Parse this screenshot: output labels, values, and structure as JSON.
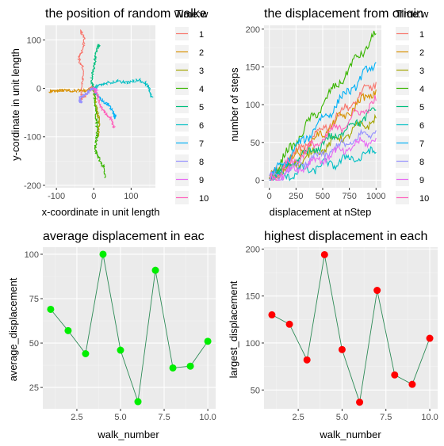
{
  "colors": {
    "panel_bg": "#EBEBEB",
    "grid_major": "#FFFFFF",
    "grid_minor": "#F4F4F4",
    "avg_line": "#2E8B57",
    "avg_point": "#00EE00",
    "max_line": "#2E8B57",
    "max_point": "#FF0000",
    "walks": [
      "#F8766D",
      "#D89000",
      "#A3A500",
      "#39B600",
      "#00BF7D",
      "#00BFC4",
      "#00B0F6",
      "#9590FF",
      "#E76BF3",
      "#FF62BC"
    ]
  },
  "chart_data": [
    {
      "type": "line",
      "title": "the position of random walke",
      "xlabel": "x-coordinate in unit length",
      "ylabel": "y-cordinate in unit length",
      "xlim": [
        -130,
        165
      ],
      "ylim": [
        -205,
        130
      ],
      "xticks": [
        -100,
        0,
        100
      ],
      "yticks": [
        -200,
        -100,
        0,
        100
      ],
      "legend": {
        "title": "Time:w",
        "entries": [
          "1",
          "2",
          "3",
          "4",
          "5",
          "6",
          "7",
          "8",
          "9",
          "10"
        ],
        "position": "right"
      },
      "series": [
        {
          "name": "1",
          "anchors": [
            [
              0,
              0
            ],
            [
              -5,
              5
            ],
            [
              -20,
              -12
            ],
            [
              -35,
              -25
            ],
            [
              -30,
              10
            ],
            [
              -28,
              40
            ],
            [
              -40,
              60
            ],
            [
              -30,
              80
            ],
            [
              -25,
              100
            ],
            [
              -35,
              120
            ]
          ]
        },
        {
          "name": "2",
          "anchors": [
            [
              0,
              0
            ],
            [
              -8,
              -2
            ],
            [
              -20,
              -5
            ],
            [
              -35,
              -4
            ],
            [
              -60,
              -5
            ],
            [
              -80,
              -3
            ],
            [
              -100,
              -6
            ],
            [
              -110,
              -5
            ],
            [
              -120,
              -7
            ]
          ]
        },
        {
          "name": "3",
          "anchors": [
            [
              0,
              0
            ],
            [
              2,
              -10
            ],
            [
              5,
              -30
            ],
            [
              8,
              -45
            ],
            [
              12,
              -60
            ],
            [
              14,
              -75
            ],
            [
              12,
              -90
            ],
            [
              10,
              -100
            ]
          ]
        },
        {
          "name": "4",
          "anchors": [
            [
              0,
              0
            ],
            [
              3,
              -20
            ],
            [
              6,
              -45
            ],
            [
              8,
              -70
            ],
            [
              10,
              -95
            ],
            [
              5,
              -115
            ],
            [
              4,
              -130
            ],
            [
              15,
              -145
            ],
            [
              25,
              -160
            ],
            [
              30,
              -185
            ]
          ]
        },
        {
          "name": "5",
          "anchors": [
            [
              0,
              0
            ],
            [
              -5,
              15
            ],
            [
              -2,
              35
            ],
            [
              2,
              50
            ],
            [
              5,
              65
            ],
            [
              8,
              80
            ],
            [
              12,
              90
            ],
            [
              15,
              85
            ]
          ]
        },
        {
          "name": "6",
          "anchors": [
            [
              0,
              0
            ],
            [
              10,
              5
            ],
            [
              30,
              10
            ],
            [
              60,
              15
            ],
            [
              90,
              12
            ],
            [
              120,
              18
            ],
            [
              140,
              10
            ],
            [
              150,
              -5
            ],
            [
              155,
              -18
            ]
          ]
        },
        {
          "name": "7",
          "anchors": [
            [
              0,
              0
            ],
            [
              5,
              -10
            ],
            [
              15,
              -20
            ],
            [
              30,
              -30
            ],
            [
              40,
              -35
            ],
            [
              50,
              -45
            ],
            [
              55,
              -55
            ],
            [
              58,
              -60
            ]
          ]
        },
        {
          "name": "8",
          "anchors": [
            [
              0,
              0
            ],
            [
              -10,
              -2
            ],
            [
              -20,
              -12
            ],
            [
              -35,
              -18
            ],
            [
              -38,
              -25
            ],
            [
              -32,
              -30
            ]
          ]
        },
        {
          "name": "9",
          "anchors": [
            [
              0,
              0
            ],
            [
              5,
              -2
            ],
            [
              3,
              -6
            ],
            [
              8,
              -3
            ],
            [
              4,
              -8
            ],
            [
              6,
              -5
            ]
          ]
        },
        {
          "name": "10",
          "anchors": [
            [
              0,
              0
            ],
            [
              10,
              -15
            ],
            [
              15,
              -30
            ],
            [
              25,
              -45
            ],
            [
              35,
              -55
            ],
            [
              45,
              -62
            ],
            [
              52,
              -75
            ],
            [
              55,
              -80
            ]
          ]
        }
      ]
    },
    {
      "type": "line",
      "title": "the displacement from origin",
      "xlabel": "displacement at nStep",
      "ylabel": "number of steps",
      "xlim": [
        -50,
        1050
      ],
      "ylim": [
        -10,
        205
      ],
      "xticks": [
        0,
        250,
        500,
        750,
        1000
      ],
      "yticks": [
        0,
        50,
        100,
        150,
        200
      ],
      "legend": {
        "title": "Time:w",
        "entries": [
          "1",
          "2",
          "3",
          "4",
          "5",
          "6",
          "7",
          "8",
          "9",
          "10"
        ],
        "position": "right"
      },
      "series": [
        {
          "name": "1",
          "final": 130
        },
        {
          "name": "2",
          "final": 120
        },
        {
          "name": "3",
          "final": 82
        },
        {
          "name": "4",
          "final": 194
        },
        {
          "name": "5",
          "final": 93
        },
        {
          "name": "6",
          "final": 37
        },
        {
          "name": "7",
          "final": 156
        },
        {
          "name": "8",
          "final": 66
        },
        {
          "name": "9",
          "final": 56
        },
        {
          "name": "10",
          "final": 105
        }
      ]
    },
    {
      "type": "line",
      "title": "average displacement in eac",
      "xlabel": "walk_number",
      "ylabel": "average_displacement",
      "xlim": [
        0.55,
        10.45
      ],
      "ylim": [
        13,
        104
      ],
      "xticks": [
        2.5,
        5.0,
        7.5,
        10.0
      ],
      "xtick_labels": [
        "2.5",
        "5.0",
        "7.5",
        "10.0"
      ],
      "yticks": [
        25,
        50,
        75,
        100
      ],
      "x": [
        1,
        2,
        3,
        4,
        5,
        6,
        7,
        8,
        9,
        10
      ],
      "y": [
        69,
        57,
        44,
        100,
        46,
        17,
        91,
        36,
        37,
        51
      ]
    },
    {
      "type": "line",
      "title": "highest displacement in each",
      "xlabel": "walk_number",
      "ylabel": "largest_displacement",
      "xlim": [
        0.55,
        10.45
      ],
      "ylim": [
        30,
        202
      ],
      "xticks": [
        2.5,
        5.0,
        7.5,
        10.0
      ],
      "xtick_labels": [
        "2.5",
        "5.0",
        "7.5",
        "10.0"
      ],
      "yticks": [
        50,
        100,
        150,
        200
      ],
      "x": [
        1,
        2,
        3,
        4,
        5,
        6,
        7,
        8,
        9,
        10
      ],
      "y": [
        130,
        120,
        82,
        194,
        93,
        37,
        156,
        66,
        56,
        105
      ]
    }
  ]
}
